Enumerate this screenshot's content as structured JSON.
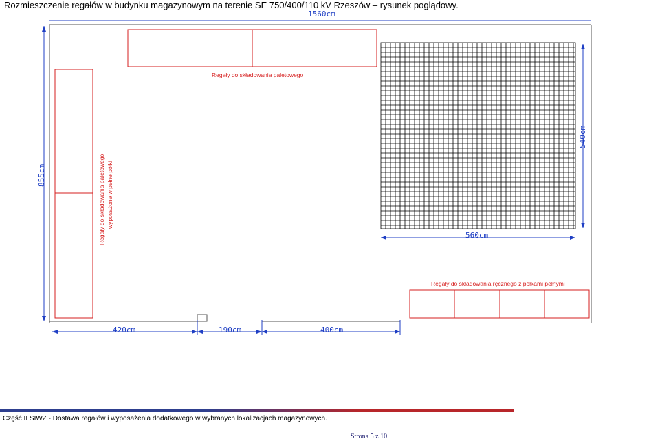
{
  "document": {
    "title": "Rozmieszczenie regałów w budynku magazynowym na terenie SE 750/400/110 kV Rzeszów – rysunek poglądowy."
  },
  "drawing": {
    "dimensions": {
      "top_width": "1560cm",
      "left_height": "855cm",
      "grid_height": "540cm",
      "grid_width": "560cm",
      "bottom_left": "420cm",
      "bottom_middle": "190cm",
      "bottom_right": "400cm"
    },
    "labels": {
      "pallet_racks": "Regały do składowania paletowego",
      "pallet_racks_with_shelves_line1": "Regały do składowania paletowego",
      "pallet_racks_with_shelves_line2": "wyposażone w pełne półki",
      "manual_racks": "Regały do składowania ręcznego z półkami pełnymi"
    },
    "colors": {
      "walls": "#1f3fc4",
      "racks": "#d61f1f",
      "grid": "#000000"
    }
  },
  "footer": {
    "text": "Część II SIWZ - Dostawa regałów i wyposażenia dodatkowego w wybranych lokalizacjach magazynowych.",
    "page_prefix": "Strona",
    "page_current": "5",
    "page_sep": "z",
    "page_total": "10"
  }
}
